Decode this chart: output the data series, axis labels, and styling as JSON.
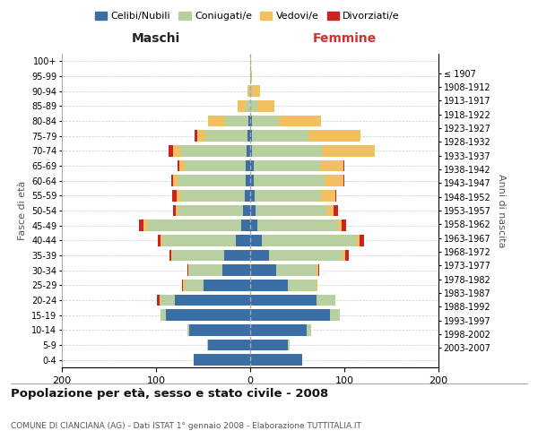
{
  "age_groups": [
    "0-4",
    "5-9",
    "10-14",
    "15-19",
    "20-24",
    "25-29",
    "30-34",
    "35-39",
    "40-44",
    "45-49",
    "50-54",
    "55-59",
    "60-64",
    "65-69",
    "70-74",
    "75-79",
    "80-84",
    "85-89",
    "90-94",
    "95-99",
    "100+"
  ],
  "birth_years": [
    "2003-2007",
    "1998-2002",
    "1993-1997",
    "1988-1992",
    "1983-1987",
    "1978-1982",
    "1973-1977",
    "1968-1972",
    "1963-1967",
    "1958-1962",
    "1953-1957",
    "1948-1952",
    "1943-1947",
    "1938-1942",
    "1933-1937",
    "1928-1932",
    "1923-1927",
    "1918-1922",
    "1913-1917",
    "1908-1912",
    "≤ 1907"
  ],
  "colors": {
    "celibi": "#3a6ea5",
    "coniugati": "#b8cfa0",
    "vedovi": "#f2c060",
    "divorziati": "#cc2222"
  },
  "maschi": {
    "celibi": [
      60,
      45,
      65,
      90,
      80,
      50,
      30,
      28,
      15,
      10,
      8,
      6,
      5,
      5,
      4,
      3,
      2,
      0,
      0,
      0,
      0
    ],
    "coniugati": [
      0,
      1,
      2,
      5,
      15,
      20,
      35,
      55,
      78,
      100,
      68,
      68,
      72,
      65,
      70,
      45,
      25,
      5,
      1,
      0,
      0
    ],
    "vedovi": [
      0,
      0,
      0,
      0,
      1,
      1,
      1,
      1,
      2,
      3,
      3,
      4,
      5,
      5,
      8,
      8,
      18,
      8,
      2,
      0,
      0
    ],
    "divorziati": [
      0,
      0,
      0,
      0,
      3,
      1,
      1,
      2,
      3,
      5,
      3,
      5,
      2,
      2,
      5,
      3,
      0,
      0,
      0,
      0,
      0
    ]
  },
  "femmine": {
    "celibi": [
      55,
      40,
      60,
      85,
      70,
      40,
      28,
      20,
      12,
      8,
      6,
      5,
      4,
      4,
      2,
      2,
      2,
      0,
      0,
      0,
      0
    ],
    "coniugati": [
      0,
      2,
      5,
      10,
      20,
      30,
      42,
      78,
      100,
      85,
      75,
      70,
      75,
      70,
      75,
      60,
      28,
      8,
      2,
      1,
      0
    ],
    "vedovi": [
      0,
      0,
      0,
      0,
      0,
      1,
      2,
      3,
      4,
      4,
      8,
      15,
      20,
      25,
      55,
      55,
      45,
      18,
      8,
      1,
      1
    ],
    "divorziati": [
      0,
      0,
      0,
      0,
      0,
      0,
      1,
      4,
      5,
      5,
      4,
      1,
      1,
      1,
      0,
      0,
      0,
      0,
      0,
      0,
      0
    ]
  },
  "title": "Popolazione per età, sesso e stato civile - 2008",
  "subtitle": "COMUNE DI CIANCIANA (AG) - Dati ISTAT 1° gennaio 2008 - Elaborazione TUTTITALIA.IT",
  "label_maschi": "Maschi",
  "label_femmine": "Femmine",
  "ylabel_left": "Fasce di età",
  "ylabel_right": "Anni di nascita",
  "xlim": 200,
  "legend_labels": [
    "Celibi/Nubili",
    "Coniugati/e",
    "Vedovi/e",
    "Divorziati/e"
  ]
}
